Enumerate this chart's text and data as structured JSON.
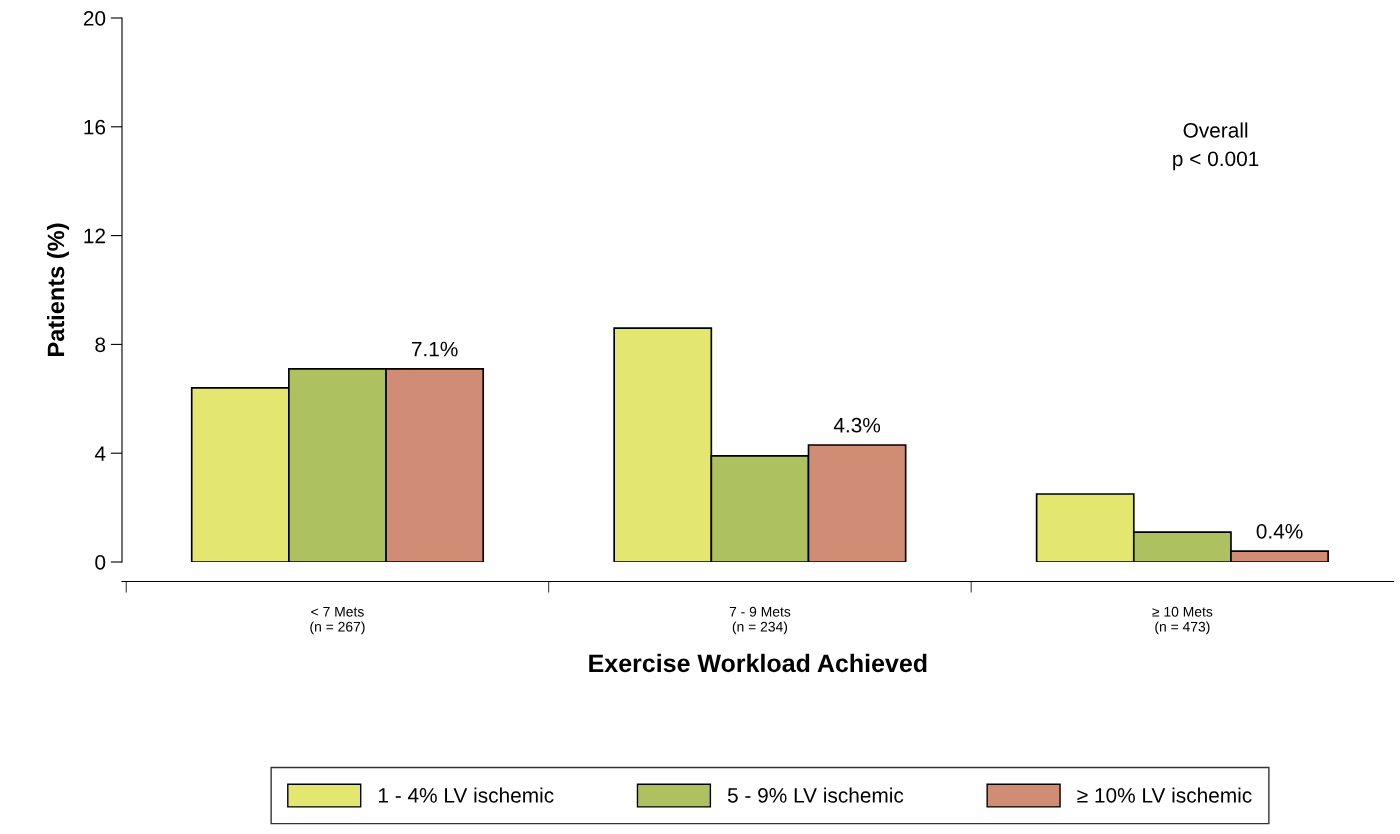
{
  "chart_data": {
    "type": "bar",
    "categories": [
      "< 7 Mets\n(n = 267)",
      "7 - 9 Mets\n(n = 234)",
      "≥ 10 Mets\n(n = 473)"
    ],
    "series": [
      {
        "name": "1 - 4% LV ischemic",
        "color": "#e3e66f",
        "values": [
          6.4,
          8.6,
          2.5
        ]
      },
      {
        "name": "5 - 9% LV ischemic",
        "color": "#adc161",
        "values": [
          7.1,
          3.9,
          1.1
        ]
      },
      {
        "name": "≥ 10% LV ischemic",
        "color": "#d08c75",
        "values": [
          7.1,
          4.3,
          0.4
        ],
        "value_labels": [
          "7.1%",
          "4.3%",
          "0.4%"
        ]
      }
    ],
    "xlabel": "Exercise Workload Achieved",
    "ylabel": "Patients (%)",
    "ylim": [
      0,
      20
    ],
    "yticks": [
      0,
      4,
      8,
      12,
      16,
      20
    ],
    "annotations": [
      "Overall\np < 0.001"
    ],
    "legend": "bottom",
    "grid": false
  }
}
